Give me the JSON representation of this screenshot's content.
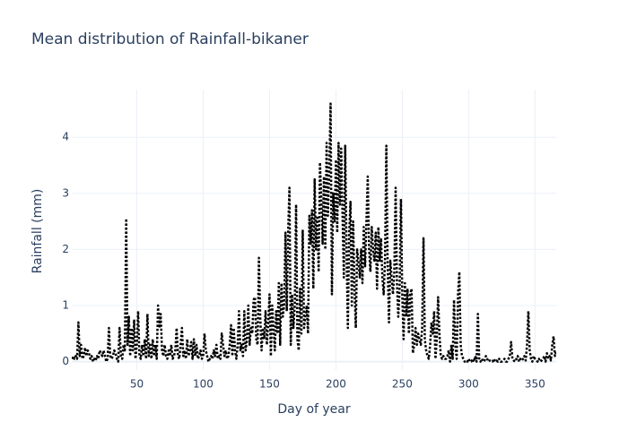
{
  "chart_data": {
    "type": "line",
    "title": "Mean distribution of Rainfall-bikaner",
    "x_label": "Day of year",
    "y_label": "Rainfall (mm)",
    "color": "#000000",
    "line_dash": "dot",
    "grid": true,
    "xlim": [
      1,
      366
    ],
    "ylim": [
      -0.15,
      4.85
    ],
    "xticks": [
      50,
      100,
      150,
      200,
      250,
      300,
      350
    ],
    "yticks": [
      0,
      1,
      2,
      3,
      4
    ],
    "x": [
      1,
      2,
      3,
      4,
      5,
      6,
      7,
      8,
      9,
      10,
      11,
      12,
      13,
      14,
      15,
      16,
      17,
      18,
      19,
      20,
      21,
      22,
      23,
      24,
      25,
      26,
      27,
      28,
      29,
      30,
      31,
      32,
      33,
      34,
      35,
      36,
      37,
      38,
      39,
      40,
      41,
      42,
      43,
      44,
      45,
      46,
      47,
      48,
      49,
      50,
      51,
      52,
      53,
      54,
      55,
      56,
      57,
      58,
      59,
      60,
      61,
      62,
      63,
      64,
      65,
      66,
      67,
      68,
      69,
      70,
      71,
      72,
      73,
      74,
      75,
      76,
      77,
      78,
      79,
      80,
      81,
      82,
      83,
      84,
      85,
      86,
      87,
      88,
      89,
      90,
      91,
      92,
      93,
      94,
      95,
      96,
      97,
      98,
      99,
      100,
      101,
      102,
      103,
      104,
      105,
      106,
      107,
      108,
      109,
      110,
      111,
      112,
      113,
      114,
      115,
      116,
      117,
      118,
      119,
      120,
      121,
      122,
      123,
      124,
      125,
      126,
      127,
      128,
      129,
      130,
      131,
      132,
      133,
      134,
      135,
      136,
      137,
      138,
      139,
      140,
      141,
      142,
      143,
      144,
      145,
      146,
      147,
      148,
      149,
      150,
      151,
      152,
      153,
      154,
      155,
      156,
      157,
      158,
      159,
      160,
      161,
      162,
      163,
      164,
      165,
      166,
      167,
      168,
      169,
      170,
      171,
      172,
      173,
      174,
      175,
      176,
      177,
      178,
      179,
      180,
      181,
      182,
      183,
      184,
      185,
      186,
      187,
      188,
      189,
      190,
      191,
      192,
      193,
      194,
      195,
      196,
      197,
      198,
      199,
      200,
      201,
      202,
      203,
      204,
      205,
      206,
      207,
      208,
      209,
      210,
      211,
      212,
      213,
      214,
      215,
      216,
      217,
      218,
      219,
      220,
      221,
      222,
      223,
      224,
      225,
      226,
      227,
      228,
      229,
      230,
      231,
      232,
      233,
      234,
      235,
      236,
      237,
      238,
      239,
      240,
      241,
      242,
      243,
      244,
      245,
      246,
      247,
      248,
      249,
      250,
      251,
      252,
      253,
      254,
      255,
      256,
      257,
      258,
      259,
      260,
      261,
      262,
      263,
      264,
      265,
      266,
      267,
      268,
      269,
      270,
      271,
      272,
      273,
      274,
      275,
      276,
      277,
      278,
      279,
      280,
      281,
      282,
      283,
      284,
      285,
      286,
      287,
      288,
      289,
      290,
      291,
      292,
      293,
      294,
      295,
      296,
      297,
      298,
      299,
      300,
      301,
      302,
      303,
      304,
      305,
      306,
      307,
      308,
      309,
      310,
      311,
      312,
      313,
      314,
      315,
      316,
      317,
      318,
      319,
      320,
      321,
      322,
      323,
      324,
      325,
      326,
      327,
      328,
      329,
      330,
      331,
      332,
      333,
      334,
      335,
      336,
      337,
      338,
      339,
      340,
      341,
      342,
      343,
      344,
      345,
      346,
      347,
      348,
      349,
      350,
      351,
      352,
      353,
      354,
      355,
      356,
      357,
      358,
      359,
      360,
      361,
      362,
      363,
      364,
      365,
      366
    ],
    "values": [
      0.05,
      0.1,
      0.05,
      0.1,
      0.05,
      0.7,
      0.1,
      0.3,
      0.05,
      0.1,
      0.25,
      0.1,
      0.2,
      0.15,
      0.05,
      0.1,
      0,
      0.05,
      0.02,
      0.1,
      0.05,
      0.2,
      0.15,
      0.1,
      0.2,
      0.1,
      0,
      0.05,
      0.6,
      0.1,
      0.05,
      0.1,
      0.2,
      0.15,
      0.05,
      0,
      0.6,
      0.1,
      0.05,
      0.3,
      0.2,
      2.55,
      0.3,
      0.8,
      0.1,
      0.6,
      0.2,
      0.75,
      0.05,
      0.3,
      0.9,
      0.1,
      0.05,
      0.3,
      0.1,
      0.4,
      0.05,
      0.85,
      0.1,
      0.3,
      0.05,
      0.4,
      0.1,
      0.3,
      0.05,
      1.0,
      0.6,
      0.85,
      0.2,
      0.1,
      0.3,
      0.1,
      0.05,
      0.2,
      0.1,
      0.3,
      0.05,
      0.1,
      0.2,
      0.6,
      0.1,
      0.05,
      0.3,
      0.6,
      0.1,
      0.2,
      0.05,
      0.4,
      0.1,
      0.2,
      0.35,
      0.05,
      0.4,
      0.1,
      0.3,
      0.05,
      0.1,
      0.2,
      0.05,
      0.1,
      0.5,
      0.2,
      0.1,
      0,
      0.05,
      0.1,
      0.05,
      0.2,
      0.1,
      0.3,
      0.05,
      0.1,
      0.05,
      0.5,
      0.3,
      0.1,
      0.2,
      0.05,
      0.1,
      0.3,
      0.65,
      0.1,
      0.6,
      0.2,
      0.05,
      0.3,
      0.9,
      0.2,
      0.3,
      0.1,
      0.9,
      0.2,
      0.4,
      1.0,
      0.3,
      0.6,
      0.5,
      1.1,
      1.15,
      0.4,
      0.3,
      1.85,
      0.8,
      0.2,
      0.6,
      0.4,
      0.9,
      0.3,
      0.7,
      1.2,
      0.1,
      1.0,
      0.6,
      0.2,
      0.9,
      0.5,
      1.4,
      0.3,
      1.4,
      0.8,
      1.0,
      2.3,
      0.9,
      2.3,
      3.1,
      0.3,
      1.2,
      0.6,
      1.0,
      2.8,
      0.4,
      0.2,
      1.3,
      0.5,
      2.35,
      0.6,
      0.8,
      1.0,
      0.5,
      2.6,
      2.1,
      2.7,
      1.3,
      3.25,
      2.0,
      2.6,
      1.6,
      3.55,
      2.9,
      2.1,
      3.3,
      2.0,
      3.9,
      2.6,
      3.4,
      4.6,
      1.2,
      3.0,
      2.5,
      3.6,
      2.3,
      3.9,
      2.8,
      3.8,
      2.6,
      1.5,
      3.85,
      2.0,
      0.6,
      2.3,
      2.85,
      1.0,
      2.5,
      1.3,
      0.6,
      2.0,
      1.8,
      1.5,
      2.0,
      1.4,
      2.4,
      1.7,
      2.5,
      3.3,
      2.0,
      1.6,
      2.4,
      2.0,
      1.8,
      2.3,
      1.3,
      2.4,
      1.8,
      2.2,
      1.5,
      1.2,
      1.8,
      3.85,
      1.7,
      0.7,
      1.8,
      1.5,
      1.2,
      1.6,
      3.1,
      1.4,
      0.8,
      1.3,
      2.9,
      1.2,
      0.4,
      1.4,
      0.8,
      1.3,
      0.5,
      1.2,
      1.3,
      0.15,
      0.3,
      0.6,
      0.3,
      0.5,
      0.4,
      0.3,
      0.6,
      2.2,
      0.4,
      0.2,
      0.1,
      0.05,
      0.3,
      0.7,
      0.5,
      0.9,
      0.05,
      0.4,
      1.15,
      0.5,
      0.1,
      0.05,
      0.1,
      0.05,
      0.05,
      0.1,
      0.2,
      0,
      0.3,
      0.05,
      1.1,
      0.3,
      0.05,
      1.2,
      1.6,
      0.3,
      0.1,
      0.05,
      0,
      0.02,
      0,
      0.05,
      0,
      0,
      0.05,
      0,
      0.1,
      0,
      0.85,
      0.02,
      0,
      0.05,
      0,
      0.02,
      0.1,
      0.05,
      0,
      0.02,
      0,
      0,
      0.05,
      0,
      0.02,
      0,
      0.05,
      0,
      0,
      0.02,
      0.05,
      0,
      0,
      0.05,
      0.1,
      0.35,
      0.05,
      0.02,
      0,
      0.05,
      0.1,
      0,
      0.05,
      0.02,
      0.05,
      0.1,
      0.02,
      0.3,
      0.9,
      0.2,
      0.05,
      0,
      0.1,
      0.05,
      0.02,
      0,
      0.05,
      0,
      0.02,
      0.05,
      0.1,
      0,
      0.15,
      0.05,
      0.1,
      0.02,
      0.3,
      0.45,
      0.1,
      0.2
    ]
  }
}
